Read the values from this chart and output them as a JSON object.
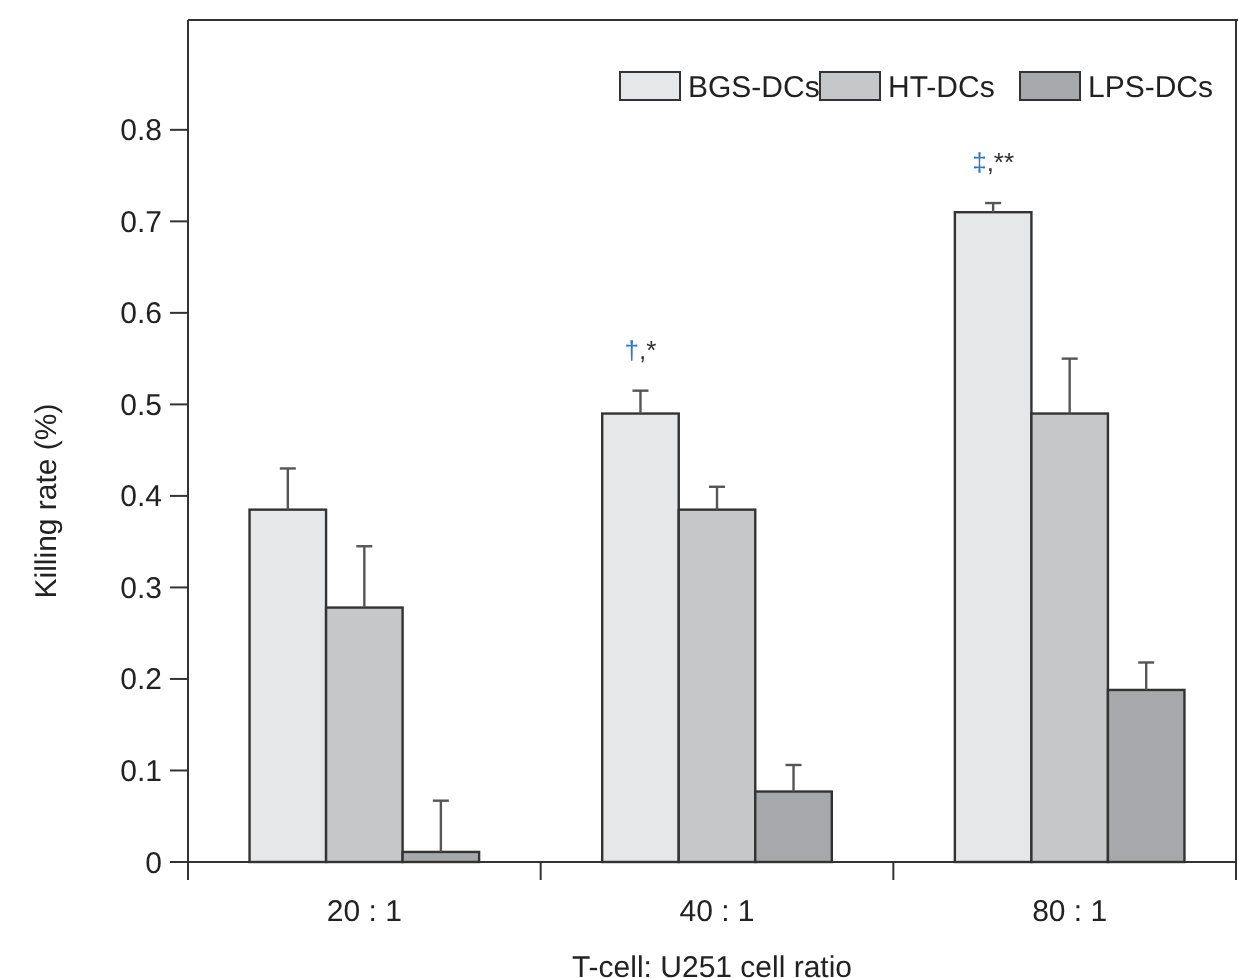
{
  "chart_data": {
    "type": "bar",
    "xlabel": "T-cell: U251 cell ratio",
    "ylabel": "Killing rate (%)",
    "categories": [
      "20 : 1",
      "40 : 1",
      "80 : 1"
    ],
    "series": [
      {
        "name": "BGS-DCs",
        "color": "#e6e7e9",
        "values": [
          0.385,
          0.49,
          0.71
        ],
        "errors": [
          [
            0.385,
            0.43
          ],
          [
            0.49,
            0.515
          ],
          [
            0.71,
            0.72
          ]
        ]
      },
      {
        "name": "HT-DCs",
        "color": "#c6c7c9",
        "values": [
          0.278,
          0.385,
          0.49
        ],
        "errors": [
          [
            0.278,
            0.345
          ],
          [
            0.385,
            0.41
          ],
          [
            0.49,
            0.55
          ]
        ]
      },
      {
        "name": "LPS-DCs",
        "color": "#a7a8ab",
        "values": [
          0.011,
          0.077,
          0.188
        ],
        "errors": [
          [
            0.011,
            0.067
          ],
          [
            0.077,
            0.106
          ],
          [
            0.188,
            0.218
          ]
        ]
      }
    ],
    "annotations": [
      "†,*",
      "‡,**"
    ],
    "ylim": [
      0,
      0.92
    ],
    "yticks": [
      0,
      0.1,
      0.2,
      0.3,
      0.4,
      0.5,
      0.6,
      0.7,
      0.8
    ],
    "legend": "top right",
    "grid": false
  }
}
